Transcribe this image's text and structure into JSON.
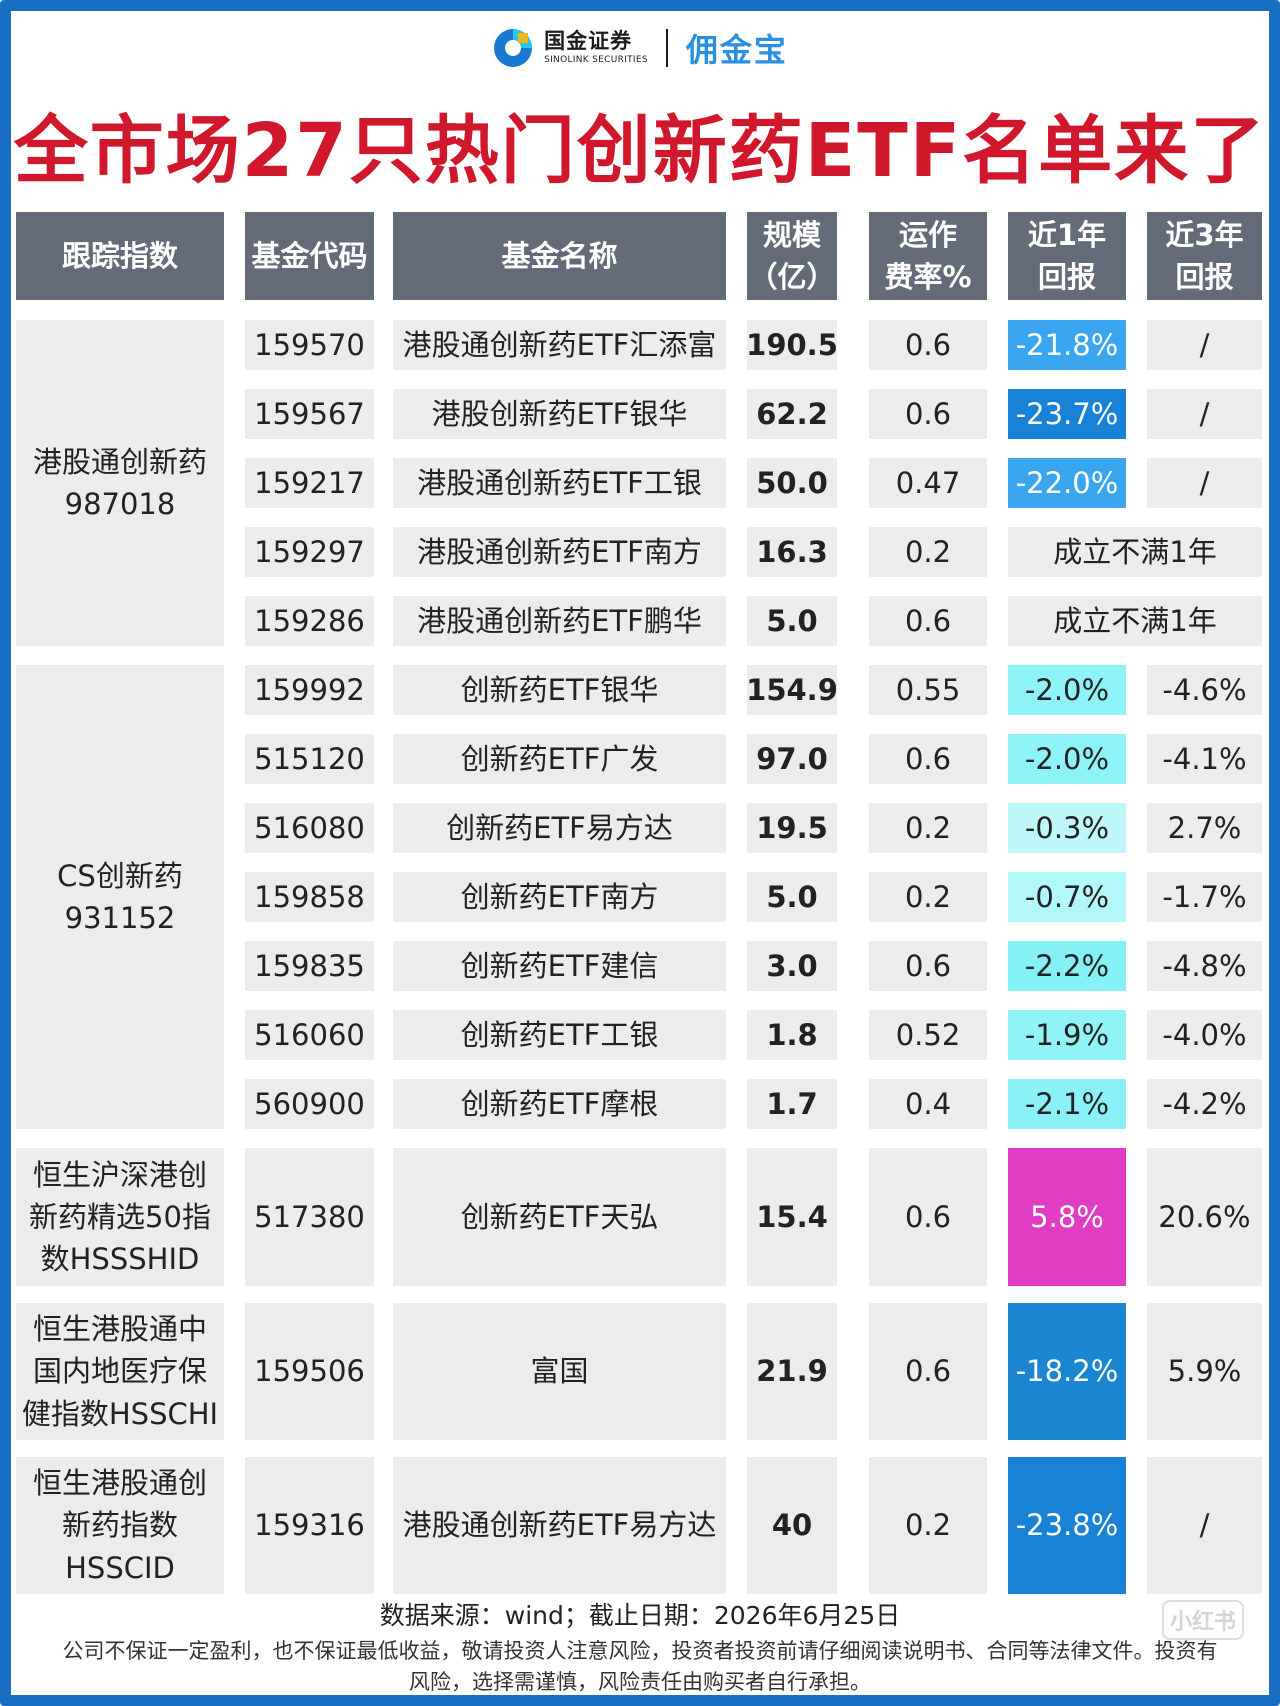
{
  "brand": {
    "name_cn": "国金证券",
    "name_en": "SINOLINK SECURITIES",
    "product": "佣金宝"
  },
  "headline": "全市场27只热门创新药ETF名单来了",
  "headers": [
    "跟踪指数",
    "基金代码",
    "基金名称",
    "规模\n（亿）",
    "运作\n费率%",
    "近1年\n回报",
    "近3年\n回报"
  ],
  "groups": [
    {
      "index": "港股通创新药\n987018",
      "rows": [
        0,
        1,
        2,
        3,
        4
      ]
    },
    {
      "index": "CS创新药\n931152",
      "rows": [
        5,
        6,
        7,
        8,
        9,
        10,
        11
      ]
    },
    {
      "index": "恒生沪深港创\n新药精选50指\n数HSSSHID",
      "rows": [
        12
      ]
    },
    {
      "index": "恒生港股通中\n国内地医疗保\n健指数HSSCHI",
      "rows": [
        13
      ]
    },
    {
      "index": "恒生港股通创\n新药指数\nHSSCID",
      "rows": [
        14
      ]
    }
  ],
  "rows": [
    {
      "code": "159570",
      "name": "港股通创新药ETF汇添富",
      "size": "190.5",
      "fee": "0.6",
      "r1": "-21.8%",
      "r3": "/",
      "c1": "#3aa6ef"
    },
    {
      "code": "159567",
      "name": "港股创新药ETF银华",
      "size": "62.2",
      "fee": "0.6",
      "r1": "-23.7%",
      "r3": "/",
      "c1": "#1782d6"
    },
    {
      "code": "159217",
      "name": "港股通创新药ETF工银",
      "size": "50.0",
      "fee": "0.47",
      "r1": "-22.0%",
      "r3": "/",
      "c1": "#3aa6ef"
    },
    {
      "code": "159297",
      "name": "港股通创新药ETF南方",
      "size": "16.3",
      "fee": "0.2",
      "merged": "成立不满1年"
    },
    {
      "code": "159286",
      "name": "港股通创新药ETF鹏华",
      "size": "5.0",
      "fee": "0.6",
      "merged": "成立不满1年"
    },
    {
      "code": "159992",
      "name": "创新药ETF银华",
      "size": "154.9",
      "fee": "0.55",
      "r1": "-2.0%",
      "r3": "-4.6%",
      "c1": "#8ef3f6"
    },
    {
      "code": "515120",
      "name": "创新药ETF广发",
      "size": "97.0",
      "fee": "0.6",
      "r1": "-2.0%",
      "r3": "-4.1%",
      "c1": "#8ef3f6"
    },
    {
      "code": "516080",
      "name": "创新药ETF易方达",
      "size": "19.5",
      "fee": "0.2",
      "r1": "-0.3%",
      "r3": "2.7%",
      "c1": "#bff8fb"
    },
    {
      "code": "159858",
      "name": "创新药ETF南方",
      "size": "5.0",
      "fee": "0.2",
      "r1": "-0.7%",
      "r3": "-1.7%",
      "c1": "#b2f7fa"
    },
    {
      "code": "159835",
      "name": "创新药ETF建信",
      "size": "3.0",
      "fee": "0.6",
      "r1": "-2.2%",
      "r3": "-4.8%",
      "c1": "#84f1f5"
    },
    {
      "code": "516060",
      "name": "创新药ETF工银",
      "size": "1.8",
      "fee": "0.52",
      "r1": "-1.9%",
      "r3": "-4.0%",
      "c1": "#90f3f6"
    },
    {
      "code": "560900",
      "name": "创新药ETF摩根",
      "size": "1.7",
      "fee": "0.4",
      "r1": "-2.1%",
      "r3": "-4.2%",
      "c1": "#8af2f6"
    },
    {
      "code": "517380",
      "name": "创新药ETF天弘",
      "size": "15.4",
      "fee": "0.6",
      "r1": "5.8%",
      "r3": "20.6%",
      "c1": "#e03cc4"
    },
    {
      "code": "159506",
      "name": "富国",
      "size": "21.9",
      "fee": "0.6",
      "r1": "-18.2%",
      "r3": "5.9%",
      "c1": "#1a86d2"
    },
    {
      "code": "159316",
      "name": "港股通创新药ETF易方达",
      "size": "40",
      "fee": "0.2",
      "r1": "-23.8%",
      "r3": "/",
      "c1": "#1782d6"
    }
  ],
  "source": "数据来源：wind；截止日期：2026年6月25日",
  "disclaimer": "公司不保证一定盈利，也不保证最低收益，敬请投资人注意风险，投资者投资前请仔细阅读说明书、合同等法律文件。投资有风险，选择需谨慎，风险责任由购买者自行承担。",
  "watermark": "小红书"
}
